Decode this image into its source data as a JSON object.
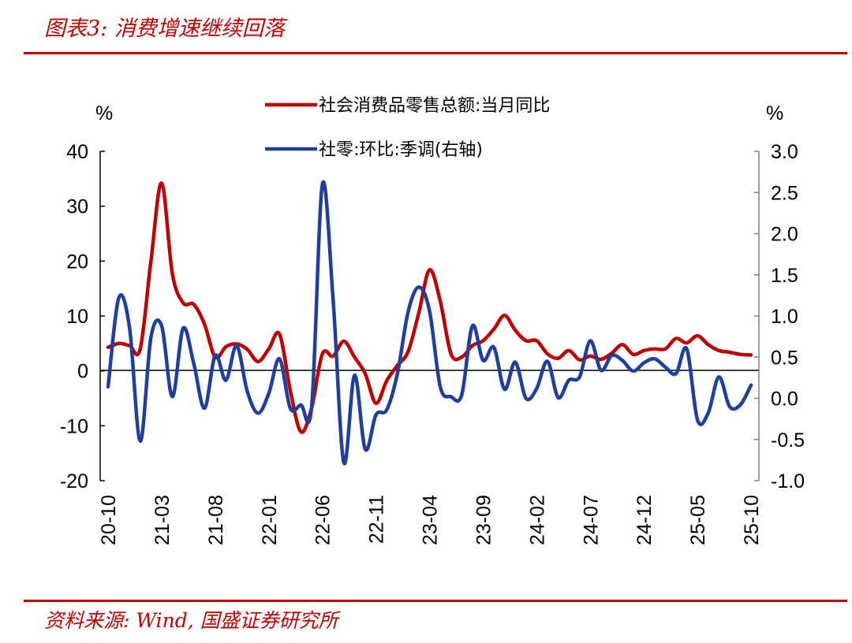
{
  "figure": {
    "title": "图表3:  消费增速继续回落",
    "source": "资料来源: Wind, 国盛证券研究所"
  },
  "colors": {
    "series_red": "#c00000",
    "series_blue": "#1f3f9f",
    "rule": "#c00000"
  },
  "chart_data": {
    "type": "line",
    "left_unit": "%",
    "right_unit": "%",
    "left_axis": {
      "min": -20,
      "max": 40,
      "ticks": [
        "40",
        "30",
        "20",
        "10",
        "0",
        "-10",
        "-20"
      ]
    },
    "right_axis": {
      "min": -1.0,
      "max": 3.0,
      "ticks": [
        "3.0",
        "2.5",
        "2.0",
        "1.5",
        "1.0",
        "0.5",
        "0.0",
        "-0.5",
        "-1.0"
      ]
    },
    "x_tick_labels": [
      "20-10",
      "21-03",
      "21-08",
      "22-01",
      "22-06",
      "22-11",
      "23-04",
      "23-09",
      "24-02",
      "24-07",
      "24-12",
      "25-05",
      "25-10"
    ],
    "grid": false,
    "legend_position": "top",
    "series": [
      {
        "name": "社会消费品零售总额:当月同比",
        "axis": "left",
        "x": [
          "20-10",
          "20-11",
          "20-12",
          "21-01",
          "21-02",
          "21-03",
          "21-04",
          "21-05",
          "21-06",
          "21-07",
          "21-08",
          "21-09",
          "21-10",
          "21-11",
          "21-12",
          "22-01",
          "22-02",
          "22-03",
          "22-04",
          "22-05",
          "22-06",
          "22-07",
          "22-08",
          "22-09",
          "22-10",
          "22-11",
          "22-12",
          "23-01",
          "23-02",
          "23-03",
          "23-04",
          "23-05",
          "23-06",
          "23-07",
          "23-08",
          "23-09",
          "23-10",
          "23-11",
          "23-12",
          "24-01",
          "24-02",
          "24-03",
          "24-04",
          "24-05",
          "24-06",
          "24-07",
          "24-08",
          "24-09",
          "24-10",
          "24-11",
          "24-12",
          "25-01",
          "25-02",
          "25-03",
          "25-04",
          "25-05",
          "25-06",
          "25-07",
          "25-08",
          "25-09",
          "25-10"
        ],
        "values": [
          4.3,
          5.0,
          4.6,
          4.0,
          20.0,
          34.2,
          17.7,
          12.4,
          12.1,
          8.5,
          2.5,
          4.4,
          4.9,
          3.9,
          1.7,
          4.0,
          6.7,
          -3.5,
          -11.1,
          -6.7,
          3.1,
          2.7,
          5.4,
          2.5,
          -0.5,
          -5.9,
          -1.8,
          1.0,
          3.5,
          10.6,
          18.4,
          12.7,
          3.1,
          2.5,
          4.6,
          5.5,
          7.6,
          10.1,
          7.4,
          5.5,
          5.5,
          3.1,
          2.3,
          3.7,
          2.0,
          2.7,
          2.1,
          3.2,
          4.8,
          3.0,
          3.7,
          4.0,
          4.0,
          5.9,
          5.1,
          6.4,
          4.8,
          3.7,
          3.4,
          3.0,
          2.9
        ]
      },
      {
        "name": "社零:环比:季调(右轴)",
        "axis": "right",
        "x": [
          "20-10",
          "20-11",
          "20-12",
          "21-01",
          "21-02",
          "21-03",
          "21-04",
          "21-05",
          "21-06",
          "21-07",
          "21-08",
          "21-09",
          "21-10",
          "21-11",
          "21-12",
          "22-01",
          "22-02",
          "22-03",
          "22-04",
          "22-05",
          "22-06",
          "22-07",
          "22-08",
          "22-09",
          "22-10",
          "22-11",
          "22-12",
          "23-01",
          "23-02",
          "23-03",
          "23-04",
          "23-05",
          "23-06",
          "23-07",
          "23-08",
          "23-09",
          "23-10",
          "23-11",
          "23-12",
          "24-01",
          "24-02",
          "24-03",
          "24-04",
          "24-05",
          "24-06",
          "24-07",
          "24-08",
          "24-09",
          "24-10",
          "24-11",
          "24-12",
          "25-01",
          "25-02",
          "25-03",
          "25-04",
          "25-05",
          "25-06",
          "25-07",
          "25-08",
          "25-09",
          "25-10"
        ],
        "values": [
          0.14,
          1.22,
          0.86,
          -0.52,
          0.74,
          0.88,
          0.02,
          0.85,
          0.42,
          -0.12,
          0.52,
          0.22,
          0.64,
          0.08,
          -0.18,
          0.06,
          0.48,
          -0.12,
          -0.08,
          -0.1,
          2.6,
          1.2,
          -0.78,
          0.28,
          -0.62,
          -0.2,
          -0.14,
          0.3,
          1.05,
          1.35,
          1.06,
          0.14,
          0.02,
          0.04,
          0.88,
          0.46,
          0.62,
          0.11,
          0.44,
          0.0,
          0.12,
          0.45,
          0.01,
          0.22,
          0.26,
          0.7,
          0.34,
          0.52,
          0.46,
          0.33,
          0.43,
          0.48,
          0.38,
          0.3,
          0.6,
          -0.26,
          -0.18,
          0.26,
          -0.1,
          -0.08,
          0.16
        ]
      }
    ]
  }
}
